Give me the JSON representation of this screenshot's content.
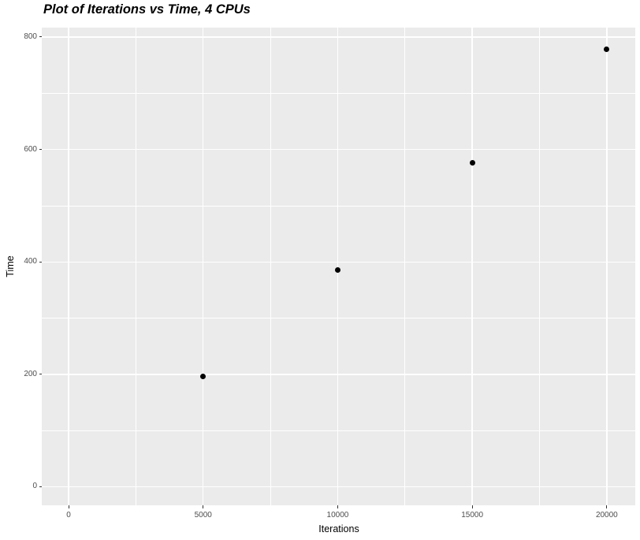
{
  "chart_data": {
    "type": "scatter",
    "title": "Plot of Iterations vs Time, 4 CPUs",
    "xlabel": "Iterations",
    "ylabel": "Time",
    "x": [
      5000,
      10000,
      15000,
      20000
    ],
    "y": [
      197,
      386,
      577,
      778
    ],
    "x_ticks": [
      0,
      5000,
      10000,
      15000,
      20000
    ],
    "x_tick_labels": [
      "0",
      "5000",
      "10000",
      "15000",
      "20000"
    ],
    "y_ticks": [
      0,
      200,
      400,
      600,
      800
    ],
    "y_tick_labels": [
      "0",
      "200",
      "400",
      "600",
      "800"
    ],
    "xlim": [
      0,
      20000
    ],
    "ylim": [
      0,
      800
    ],
    "grid": "major-and-minor",
    "legend": "none",
    "style": "ggplot2-gray-theme",
    "colors": {
      "point": "#000000",
      "panel_background": "#EBEBEB",
      "gridline": "#FFFFFF",
      "axis_tick_text": "#4D4D4D",
      "tick_mark": "#333333",
      "title_text": "#000000",
      "page_background": "#FFFFFF"
    }
  }
}
